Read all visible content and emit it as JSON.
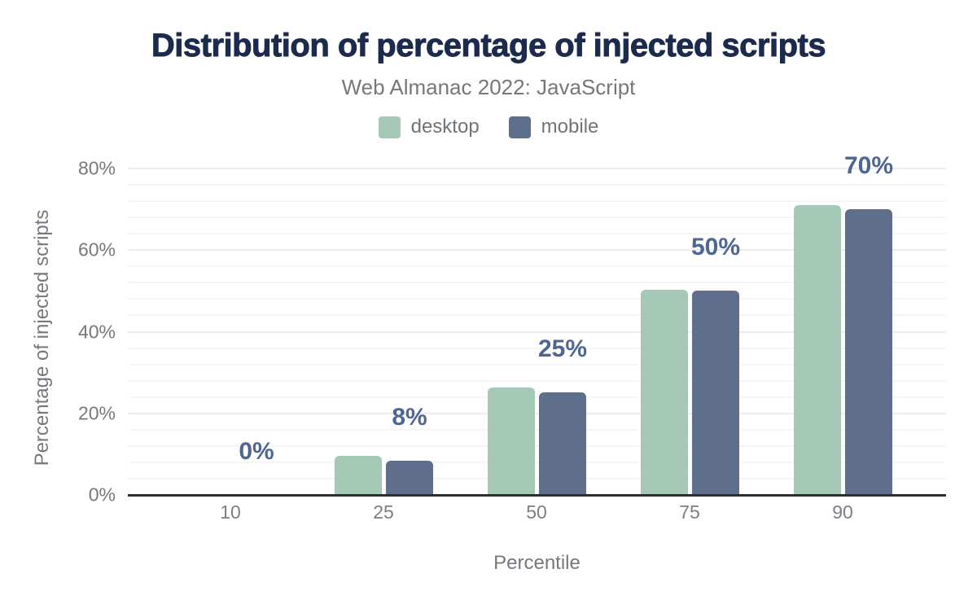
{
  "title": "Distribution of percentage of injected scripts",
  "subtitle": "Web Almanac 2022: JavaScript",
  "legend": [
    {
      "label": "desktop",
      "color": "#a6c8b7"
    },
    {
      "label": "mobile",
      "color": "#5f6e8a"
    }
  ],
  "chart_data": {
    "type": "bar",
    "title": "Distribution of percentage of injected scripts",
    "subtitle": "Web Almanac 2022: JavaScript",
    "categories": [
      "10",
      "25",
      "50",
      "75",
      "90"
    ],
    "series": [
      {
        "name": "desktop",
        "color": "#a6c8b7",
        "values": [
          0,
          9.5,
          26.3,
          50.3,
          71
        ]
      },
      {
        "name": "mobile",
        "color": "#5f6e8a",
        "values": [
          0,
          8.3,
          25.1,
          50,
          70
        ]
      }
    ],
    "data_labels": [
      "0%",
      "8%",
      "25%",
      "50%",
      "70%"
    ],
    "data_label_series": "mobile",
    "xlabel": "Percentile",
    "ylabel": "Percentage of injected scripts",
    "ylim": [
      0,
      80
    ],
    "yticks": [
      {
        "value": 0,
        "label": "0%"
      },
      {
        "value": 20,
        "label": "20%"
      },
      {
        "value": 40,
        "label": "40%"
      },
      {
        "value": 60,
        "label": "60%"
      },
      {
        "value": 80,
        "label": "80%"
      }
    ],
    "grid": {
      "orientation": "horizontal",
      "minor_step": 4,
      "major_step": 20
    },
    "legend_position": "top"
  },
  "colors": {
    "background": "#ffffff",
    "title": "#1c2b4d",
    "subtitle": "#75787a",
    "axis_text": "#75787c",
    "data_label": "#4e6691",
    "axis_line": "#2e2e2e",
    "grid_major": "#ececec",
    "grid_minor": "#f6f6f6",
    "desktop": "#a6c8b7",
    "mobile": "#5f6e8a"
  }
}
